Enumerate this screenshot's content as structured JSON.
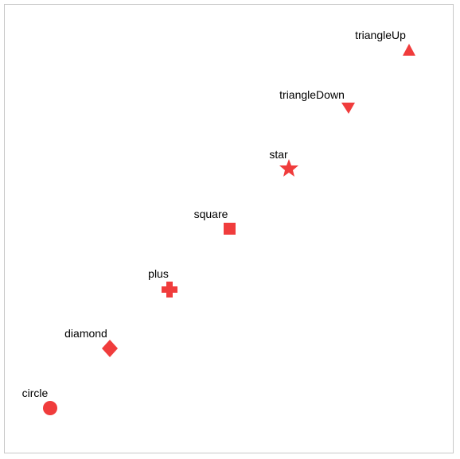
{
  "colors": {
    "marker": "#f03c3c",
    "frame": "#c8c8c8"
  },
  "points": [
    {
      "label": "circle",
      "shape": "circle"
    },
    {
      "label": "diamond",
      "shape": "diamond"
    },
    {
      "label": "plus",
      "shape": "plus"
    },
    {
      "label": "square",
      "shape": "square"
    },
    {
      "label": "star",
      "shape": "star"
    },
    {
      "label": "triangleDown",
      "shape": "triangle-down"
    },
    {
      "label": "triangleUp",
      "shape": "triangle-up"
    }
  ]
}
